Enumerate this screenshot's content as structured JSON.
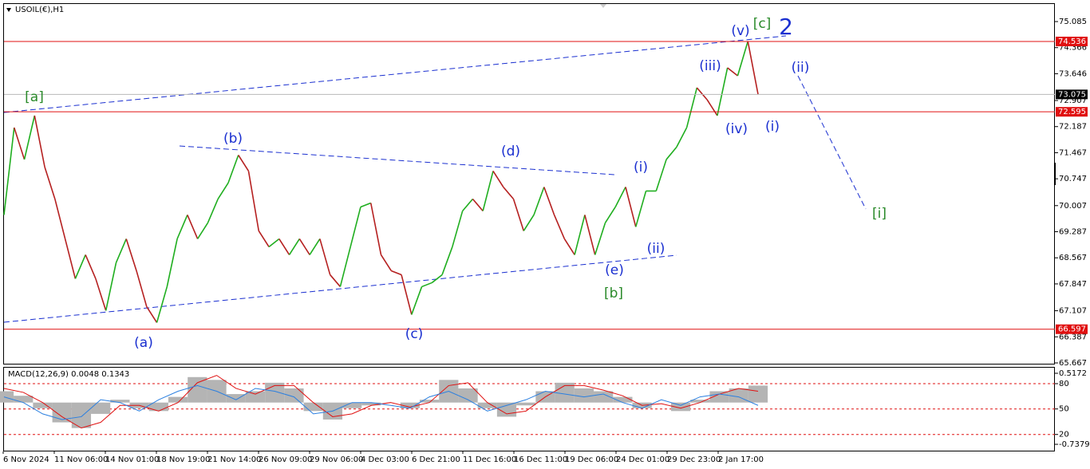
{
  "chart_data": [
    {
      "type": "line",
      "title": "USOIL(€),H1",
      "up_color": "#1fae1f",
      "down_color": "#b52020",
      "values": [
        69.75,
        72.16,
        71.28,
        72.49,
        71.07,
        70.19,
        69.09,
        67.99,
        68.65,
        67.99,
        67.11,
        68.43,
        69.09,
        68.21,
        67.22,
        66.78,
        67.77,
        69.09,
        69.75,
        69.09,
        69.53,
        70.19,
        70.63,
        71.4,
        70.96,
        69.31,
        68.87,
        69.09,
        68.65,
        69.09,
        68.65,
        69.09,
        68.1,
        67.77,
        68.87,
        69.97,
        70.08,
        68.65,
        68.21,
        68.1,
        67.0,
        67.77,
        67.88,
        68.1,
        68.87,
        69.86,
        70.19,
        69.86,
        70.96,
        70.52,
        70.19,
        69.31,
        69.75,
        70.52,
        69.75,
        69.09,
        68.65,
        69.75,
        68.65,
        69.53,
        69.97,
        70.52,
        69.42,
        70.41,
        70.41,
        71.28,
        71.62,
        72.16,
        73.26,
        72.93,
        72.49,
        73.81,
        73.59,
        74.54,
        73.08
      ],
      "ylim": [
        65.667,
        75.57
      ],
      "yticks": [
        75.085,
        74.366,
        73.646,
        72.907,
        72.187,
        71.467,
        70.747,
        70.007,
        69.287,
        68.567,
        67.847,
        67.107,
        66.387,
        65.667
      ],
      "levels": [
        {
          "value": 74.536,
          "color": "#e01010",
          "label_color": "#e01010"
        },
        {
          "value": 73.075,
          "color": "#b8b8b8",
          "label_color": "#000000"
        },
        {
          "value": 72.595,
          "color": "#e01010",
          "label_color": "#e01010"
        },
        {
          "value": 66.597,
          "color": "#e01010",
          "label_color": "#e01010"
        }
      ],
      "annotations": [
        {
          "text": "[a]",
          "color": "#2a8a2a"
        },
        {
          "text": "(b)",
          "color": "#1a2fd0"
        },
        {
          "text": "(d)",
          "color": "#1a2fd0"
        },
        {
          "text": "(i)",
          "color": "#1a2fd0"
        },
        {
          "text": "(a)",
          "color": "#1a2fd0"
        },
        {
          "text": "(c)",
          "color": "#1a2fd0"
        },
        {
          "text": "(e)",
          "color": "#1a2fd0"
        },
        {
          "text": "[b]",
          "color": "#2a8a2a"
        },
        {
          "text": "(ii)",
          "color": "#1a2fd0"
        },
        {
          "text": "(iii)",
          "color": "#1a2fd0"
        },
        {
          "text": "(iv)",
          "color": "#1a2fd0"
        },
        {
          "text": "(v)",
          "color": "#1a2fd0"
        },
        {
          "text": "[c]",
          "color": "#2a8a2a"
        },
        {
          "text": "2",
          "color": "#1a2fd0"
        },
        {
          "text": "(ii)",
          "color": "#1a2fd0"
        },
        {
          "text": "(i)",
          "color": "#1a2fd0"
        },
        {
          "text": "[i]",
          "color": "#2a8a2a"
        }
      ]
    },
    {
      "type": "macd",
      "title": "MACD(12,26,9) 0.0048 0.1343",
      "histogram_color": "#b4b4b4",
      "signal_color": "#e01010",
      "main_color": "#2a7fe0",
      "histogram": [
        0.2,
        0.12,
        -0.1,
        -0.35,
        -0.45,
        -0.2,
        0.05,
        -0.1,
        -0.15,
        0.1,
        0.45,
        0.4,
        0.15,
        0.2,
        0.35,
        0.25,
        -0.15,
        -0.3,
        -0.1,
        -0.05,
        0.0,
        -0.1,
        0.05,
        0.4,
        0.25,
        -0.1,
        -0.25,
        -0.05,
        0.2,
        0.35,
        0.25,
        0.2,
        0.1,
        -0.1,
        0.0,
        -0.15,
        0.05,
        0.2,
        0.25,
        0.3
      ],
      "signal": [
        0.25,
        0.18,
        0.0,
        -0.25,
        -0.45,
        -0.35,
        -0.05,
        -0.05,
        -0.15,
        0.0,
        0.35,
        0.48,
        0.25,
        0.15,
        0.3,
        0.3,
        0.0,
        -0.25,
        -0.2,
        -0.05,
        0.0,
        -0.08,
        0.0,
        0.3,
        0.35,
        0.0,
        -0.2,
        -0.15,
        0.1,
        0.3,
        0.3,
        0.22,
        0.12,
        -0.05,
        -0.02,
        -0.1,
        0.0,
        0.15,
        0.25,
        0.2
      ],
      "main": [
        0.1,
        0.0,
        -0.2,
        -0.3,
        -0.25,
        0.05,
        0.0,
        -0.15,
        0.05,
        0.2,
        0.3,
        0.2,
        0.05,
        0.25,
        0.2,
        0.1,
        -0.2,
        -0.15,
        0.0,
        0.0,
        -0.05,
        -0.1,
        0.1,
        0.2,
        0.05,
        -0.15,
        -0.05,
        0.05,
        0.2,
        0.15,
        0.1,
        0.15,
        0.0,
        -0.1,
        0.05,
        -0.05,
        0.1,
        0.15,
        0.1,
        -0.05
      ],
      "ylim": [
        -0.85,
        0.63
      ],
      "yticks": [
        0.5172,
        {
          "value": 0.334,
          "label": "80"
        },
        {
          "value": -0.113,
          "label": "50"
        },
        {
          "value": -0.564,
          "label": "20"
        },
        -0.7379
      ]
    }
  ],
  "time_axis": {
    "labels": [
      "6 Nov 2024",
      "11 Nov 06:00",
      "14 Nov 01:00",
      "18 Nov 19:00",
      "21 Nov 14:00",
      "26 Nov 09:00",
      "29 Nov 06:00",
      "4 Dec 03:00",
      "6 Dec 21:00",
      "11 Dec 16:00",
      "16 Dec 11:00",
      "19 Dec 06:00",
      "24 Dec 01:00",
      "29 Dec 23:00",
      "2 Jan 17:00"
    ]
  }
}
